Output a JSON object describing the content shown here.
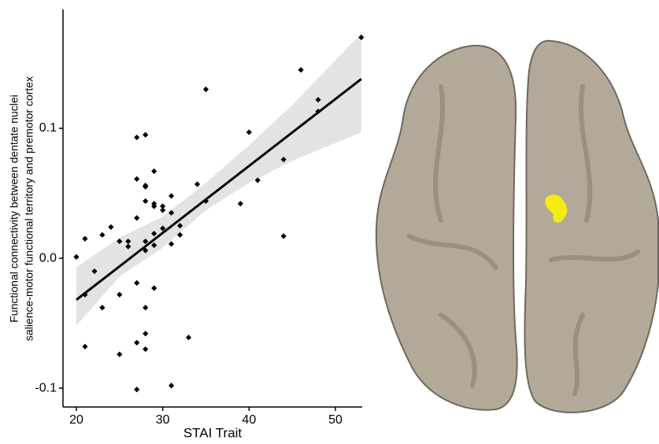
{
  "chart_data": {
    "type": "scatter",
    "x_label": "STAI Trait",
    "y_label": [
      "Functional connectivity between dentate nuclei",
      "salience-motor functional territory and premotor cortex"
    ],
    "xlim": [
      18.45,
      53.1
    ],
    "ylim": [
      -0.1145,
      0.1915
    ],
    "xticks": [
      20,
      30,
      40,
      50
    ],
    "yticks": [
      {
        "value": -0.1,
        "label": "-0.1"
      },
      {
        "value": 0,
        "label": "0.0"
      },
      {
        "value": 0.1,
        "label": "0.1"
      }
    ],
    "color": "#000000",
    "x": [
      20,
      21,
      21,
      21,
      22.1,
      23,
      23,
      24,
      25,
      25,
      25,
      26,
      26,
      27,
      27,
      27,
      27,
      27,
      27,
      28,
      28,
      28,
      28,
      28,
      28,
      28,
      28,
      28,
      29,
      29,
      29,
      29,
      29,
      29,
      30,
      30,
      30,
      31,
      31,
      31,
      31,
      32,
      32,
      33,
      34,
      35,
      35,
      39,
      40,
      41,
      44,
      44,
      46,
      48,
      48,
      53
    ],
    "y": [
      0.001,
      0.015,
      -0.028,
      -0.068,
      -0.01,
      0.018,
      -0.038,
      0.024,
      0.013,
      -0.028,
      -0.074,
      0.013,
      0.009,
      0.093,
      0.061,
      0.031,
      -0.019,
      -0.065,
      -0.101,
      0.095,
      0.056,
      0.055,
      0.044,
      0.013,
      0.006,
      -0.058,
      -0.07,
      -0.038,
      0.067,
      0.042,
      0.04,
      0.019,
      0.01,
      -0.023,
      0.04,
      0.037,
      0.023,
      0.048,
      0.035,
      0.011,
      -0.098,
      0.025,
      0.018,
      -0.061,
      0.057,
      0.13,
      0.044,
      0.042,
      0.097,
      0.06,
      0.076,
      0.017,
      0.145,
      0.122,
      0.113,
      0.17
    ],
    "fit": {
      "x": [
        20,
        53
      ],
      "y": [
        -0.032,
        0.138
      ]
    },
    "band": {
      "x": [
        20,
        25,
        30,
        35,
        40,
        45,
        53
      ],
      "lower": [
        -0.052,
        -0.014,
        0.008,
        0.037,
        0.058,
        0.075,
        0.097
      ],
      "upper": [
        -0.007,
        0.016,
        0.032,
        0.058,
        0.087,
        0.118,
        0.173
      ],
      "color": "#e3e3e3"
    }
  }
}
